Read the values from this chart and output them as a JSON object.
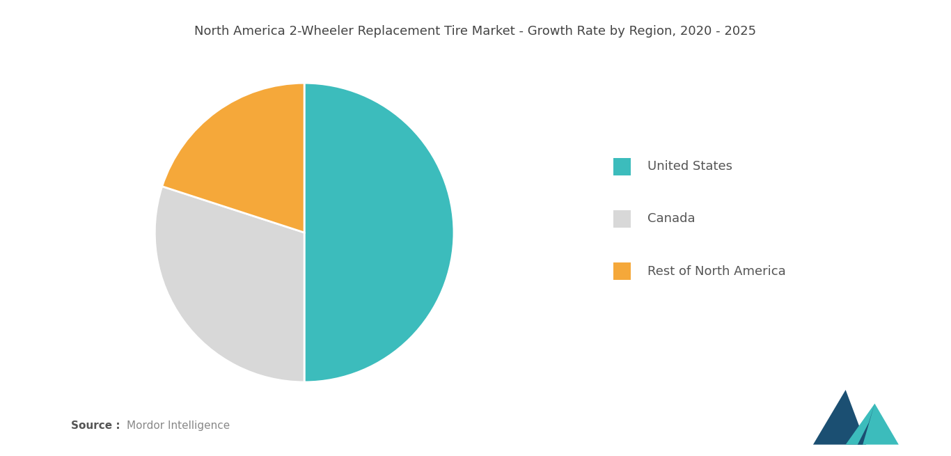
{
  "title": "North America 2-Wheeler Replacement Tire Market - Growth Rate by Region, 2020 - 2025",
  "slices": [
    {
      "label": "United States",
      "value": 50,
      "color": "#3CBCBC"
    },
    {
      "label": "Canada",
      "value": 30,
      "color": "#D8D8D8"
    },
    {
      "label": "Rest of North America",
      "value": 20,
      "color": "#F5A83A"
    }
  ],
  "legend_labels": [
    "United States",
    "Canada",
    "Rest of North America"
  ],
  "legend_colors": [
    "#3CBCBC",
    "#D8D8D8",
    "#F5A83A"
  ],
  "background_color": "#FFFFFF",
  "title_fontsize": 13,
  "legend_fontsize": 13,
  "source_fontsize": 11,
  "startangle": 90
}
